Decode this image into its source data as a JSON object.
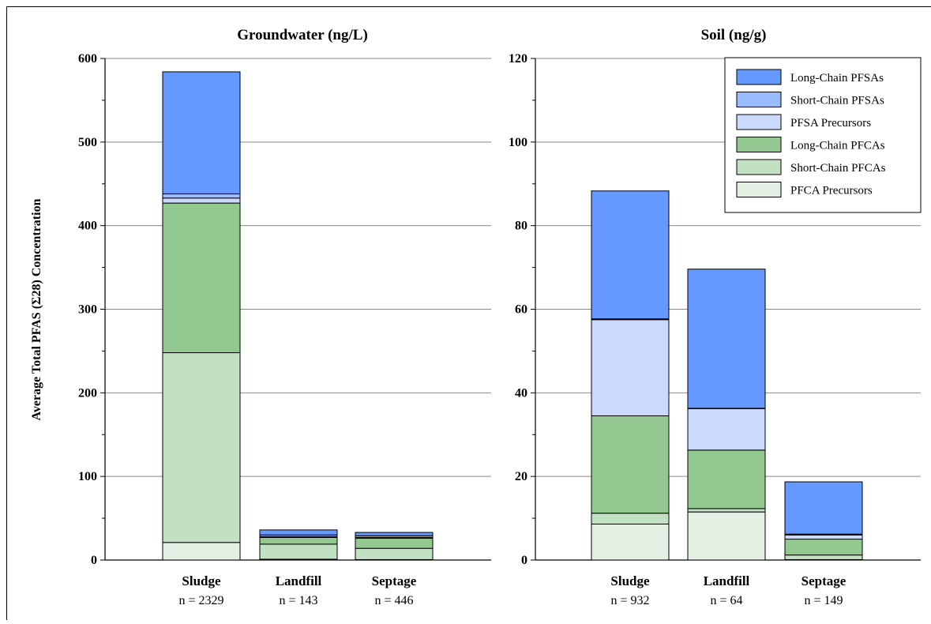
{
  "figure": {
    "ylabel": "Average Total PFAS (Σ28) Concentration"
  },
  "colors": {
    "Long-Chain PFSAs": "#6699ff",
    "Short-Chain PFSAs": "#99bbff",
    "PFSA Precursors": "#ccd9ff",
    "Long-Chain PFCAs": "#93c890",
    "Short-Chain PFCAs": "#c2e0c2",
    "PFCA Precursors": "#e5f0e5"
  },
  "legend_placement": "top-right of right panel",
  "chart_data": [
    {
      "type": "bar",
      "stacked": true,
      "title": "Groundwater (ng/L)",
      "ylim": [
        0,
        600
      ],
      "yticks": [
        0,
        100,
        200,
        300,
        400,
        500,
        600
      ],
      "grid": true,
      "categories": [
        "Sludge",
        "Landfill",
        "Septage"
      ],
      "sample_sizes": [
        "n = 2329",
        "n = 143",
        "n = 446"
      ],
      "series": [
        {
          "name": "PFCA Precursors",
          "values": [
            21,
            1,
            0.5
          ]
        },
        {
          "name": "Short-Chain PFCAs",
          "values": [
            227,
            18,
            13.5
          ]
        },
        {
          "name": "Long-Chain PFCAs",
          "values": [
            179,
            8,
            12
          ]
        },
        {
          "name": "PFSA Precursors",
          "values": [
            6,
            1,
            1
          ]
        },
        {
          "name": "Short-Chain PFSAs",
          "values": [
            5,
            2,
            2
          ]
        },
        {
          "name": "Long-Chain PFSAs",
          "values": [
            146,
            6,
            4
          ]
        }
      ]
    },
    {
      "type": "bar",
      "stacked": true,
      "title": "Soil (ng/g)",
      "ylim": [
        0,
        120
      ],
      "yticks": [
        0,
        20,
        40,
        60,
        80,
        100,
        120
      ],
      "grid": true,
      "categories": [
        "Sludge",
        "Landfill",
        "Septage"
      ],
      "sample_sizes": [
        "n = 932",
        "n = 64",
        "n = 149"
      ],
      "legend": [
        "Long-Chain PFSAs",
        "Short-Chain PFSAs",
        "PFSA Precursors",
        "Long-Chain PFCAs",
        "Short-Chain PFCAs",
        "PFCA Precursors"
      ],
      "series": [
        {
          "name": "PFCA Precursors",
          "values": [
            8.6,
            11.5,
            0.1
          ]
        },
        {
          "name": "Short-Chain PFCAs",
          "values": [
            2.6,
            0.8,
            1.1
          ]
        },
        {
          "name": "Long-Chain PFCAs",
          "values": [
            23.3,
            14,
            3.8
          ]
        },
        {
          "name": "PFSA Precursors",
          "values": [
            23,
            9.9,
            1
          ]
        },
        {
          "name": "Short-Chain PFSAs",
          "values": [
            0.2,
            0.1,
            0.2
          ]
        },
        {
          "name": "Long-Chain PFSAs",
          "values": [
            30.6,
            33.3,
            12.5
          ]
        }
      ]
    }
  ]
}
